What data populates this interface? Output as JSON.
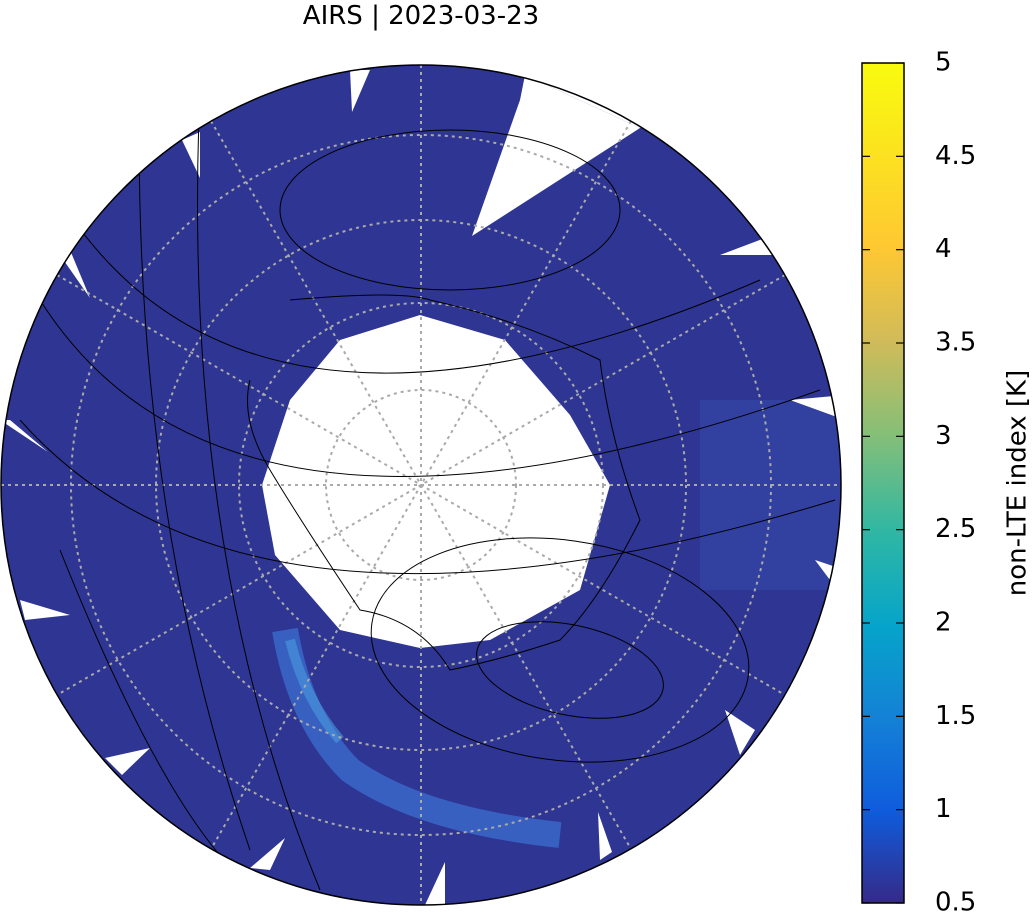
{
  "map": {
    "title": "AIRS | 2023-03-23",
    "colorbar": {
      "label": "non-LTE index [K]",
      "lim": [
        0.5,
        5
      ],
      "ticks": [
        0.5,
        1,
        1.5,
        2,
        2.5,
        3,
        3.5,
        4,
        4.5,
        5
      ]
    }
  }
}
